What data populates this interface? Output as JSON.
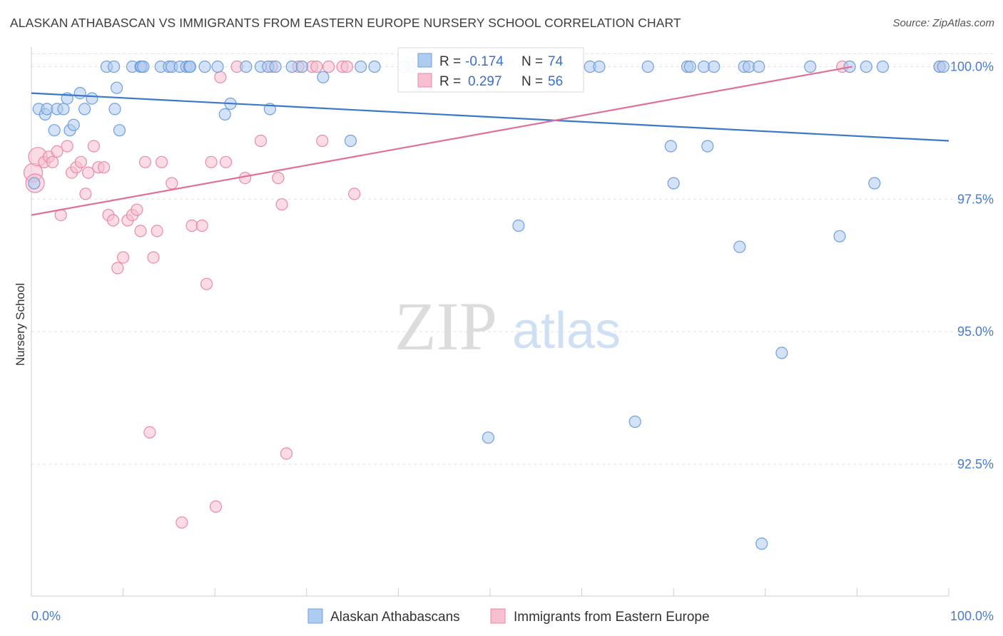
{
  "header": {
    "title": "ALASKAN ATHABASCAN VS IMMIGRANTS FROM EASTERN EUROPE NURSERY SCHOOL CORRELATION CHART",
    "source": "Source: ZipAtlas.com"
  },
  "watermark": {
    "zip": "ZIP",
    "atlas": "atlas"
  },
  "stats": [
    {
      "r_label": "R =",
      "r_value": "-0.174",
      "n_label": "N =",
      "n_value": "74"
    },
    {
      "r_label": "R =",
      "r_value": "0.297",
      "n_label": "N =",
      "n_value": "56"
    }
  ],
  "colors": {
    "blue_fill": "#aecbf0",
    "blue_stroke": "#6f9fdc",
    "blue_line": "#3a78c9",
    "pink_fill": "#f7bfd0",
    "pink_stroke": "#e98aa8",
    "pink_line": "#e0709a",
    "tick_text": "#4a7cc9",
    "stat_value": "#3a6fc4"
  },
  "chart_data": {
    "type": "scatter",
    "title": "ALASKAN ATHABASCAN VS IMMIGRANTS FROM EASTERN EUROPE NURSERY SCHOOL CORRELATION CHART",
    "xlabel": "",
    "ylabel": "Nursery School",
    "xlim": [
      0,
      100
    ],
    "ylim": [
      90.2,
      100.45
    ],
    "x_tick_labels": [
      "0.0%",
      "100.0%"
    ],
    "y_ticks": [
      92.5,
      95.0,
      97.5,
      100.0
    ],
    "y_tick_labels": [
      "92.5%",
      "95.0%",
      "97.5%",
      "100.0%"
    ],
    "grid": true,
    "legend_position": "bottom-center",
    "series": [
      {
        "name": "Alaskan Athabascans",
        "color": "#aecbf0",
        "trend": [
          [
            0,
            99.5
          ],
          [
            100,
            98.6
          ]
        ],
        "points": [
          [
            0.3,
            97.8
          ],
          [
            0.8,
            99.2
          ],
          [
            1.5,
            99.1
          ],
          [
            1.7,
            99.2
          ],
          [
            2.5,
            98.8
          ],
          [
            2.8,
            99.2
          ],
          [
            3.5,
            99.2
          ],
          [
            3.9,
            99.4
          ],
          [
            4.2,
            98.8
          ],
          [
            4.6,
            98.9
          ],
          [
            5.3,
            99.5
          ],
          [
            5.8,
            99.2
          ],
          [
            6.6,
            99.4
          ],
          [
            8.2,
            100.0
          ],
          [
            9.3,
            99.6
          ],
          [
            9.0,
            100.0
          ],
          [
            9.1,
            99.2
          ],
          [
            9.6,
            98.8
          ],
          [
            11.0,
            100.0
          ],
          [
            11.9,
            100.0
          ],
          [
            12.0,
            100.0
          ],
          [
            12.2,
            100.0
          ],
          [
            14.1,
            100.0
          ],
          [
            15.0,
            100.0
          ],
          [
            15.3,
            100.0
          ],
          [
            16.2,
            100.0
          ],
          [
            16.9,
            100.0
          ],
          [
            17.2,
            100.0
          ],
          [
            17.3,
            100.0
          ],
          [
            18.9,
            100.0
          ],
          [
            20.3,
            100.0
          ],
          [
            21.1,
            99.1
          ],
          [
            21.7,
            99.3
          ],
          [
            23.4,
            100.0
          ],
          [
            25.0,
            100.0
          ],
          [
            25.8,
            100.0
          ],
          [
            26.0,
            99.2
          ],
          [
            26.6,
            100.0
          ],
          [
            28.4,
            100.0
          ],
          [
            29.5,
            100.0
          ],
          [
            31.8,
            99.8
          ],
          [
            34.8,
            98.6
          ],
          [
            35.9,
            100.0
          ],
          [
            37.4,
            100.0
          ],
          [
            41.4,
            100.0
          ],
          [
            49.8,
            93.0
          ],
          [
            53.1,
            97.0
          ],
          [
            56.1,
            100.0
          ],
          [
            60.9,
            100.0
          ],
          [
            61.9,
            100.0
          ],
          [
            65.8,
            93.3
          ],
          [
            67.2,
            100.0
          ],
          [
            69.7,
            98.5
          ],
          [
            70.0,
            97.8
          ],
          [
            71.5,
            100.0
          ],
          [
            71.8,
            100.0
          ],
          [
            73.3,
            100.0
          ],
          [
            73.7,
            98.5
          ],
          [
            74.4,
            100.0
          ],
          [
            77.2,
            96.6
          ],
          [
            77.7,
            100.0
          ],
          [
            78.2,
            100.0
          ],
          [
            79.3,
            100.0
          ],
          [
            79.6,
            91.0
          ],
          [
            81.8,
            94.6
          ],
          [
            84.9,
            100.0
          ],
          [
            88.1,
            96.8
          ],
          [
            89.2,
            100.0
          ],
          [
            91.0,
            100.0
          ],
          [
            91.9,
            97.8
          ],
          [
            92.8,
            100.0
          ],
          [
            99.0,
            100.0
          ],
          [
            99.4,
            100.0
          ],
          [
            40.6,
            100.0
          ]
        ]
      },
      {
        "name": "Immigrants from Eastern Europe",
        "color": "#f7bfd0",
        "trend": [
          [
            0,
            97.2
          ],
          [
            89.5,
            100.0
          ]
        ],
        "points": [
          [
            0.2,
            98.0
          ],
          [
            0.7,
            98.3
          ],
          [
            1.4,
            98.2
          ],
          [
            1.9,
            98.3
          ],
          [
            2.3,
            98.2
          ],
          [
            2.8,
            98.4
          ],
          [
            3.2,
            97.2
          ],
          [
            3.9,
            98.5
          ],
          [
            4.4,
            98.0
          ],
          [
            4.9,
            98.1
          ],
          [
            5.4,
            98.2
          ],
          [
            5.9,
            97.6
          ],
          [
            6.2,
            98.0
          ],
          [
            6.8,
            98.5
          ],
          [
            7.3,
            98.1
          ],
          [
            7.9,
            98.1
          ],
          [
            8.4,
            97.2
          ],
          [
            8.9,
            97.1
          ],
          [
            9.4,
            96.2
          ],
          [
            10.0,
            96.4
          ],
          [
            10.5,
            97.1
          ],
          [
            11.0,
            97.2
          ],
          [
            11.5,
            97.3
          ],
          [
            11.9,
            96.9
          ],
          [
            12.4,
            98.2
          ],
          [
            12.9,
            93.1
          ],
          [
            13.3,
            96.4
          ],
          [
            13.7,
            96.9
          ],
          [
            14.2,
            98.2
          ],
          [
            15.3,
            97.8
          ],
          [
            16.4,
            91.4
          ],
          [
            17.5,
            97.0
          ],
          [
            18.6,
            97.0
          ],
          [
            19.1,
            95.9
          ],
          [
            19.6,
            98.2
          ],
          [
            20.1,
            91.7
          ],
          [
            20.6,
            99.8
          ],
          [
            21.2,
            98.2
          ],
          [
            22.4,
            100.0
          ],
          [
            23.3,
            97.9
          ],
          [
            25.0,
            98.6
          ],
          [
            26.2,
            100.0
          ],
          [
            26.9,
            97.9
          ],
          [
            27.3,
            97.4
          ],
          [
            27.8,
            92.7
          ],
          [
            29.1,
            100.0
          ],
          [
            30.6,
            100.0
          ],
          [
            31.1,
            100.0
          ],
          [
            31.7,
            98.6
          ],
          [
            32.4,
            100.0
          ],
          [
            33.9,
            100.0
          ],
          [
            34.4,
            100.0
          ],
          [
            35.2,
            97.6
          ],
          [
            88.4,
            100.0
          ],
          [
            99.0,
            100.0
          ],
          [
            0.4,
            97.8
          ]
        ]
      }
    ]
  },
  "legend": {
    "items": [
      "Alaskan Athabascans",
      "Immigrants from Eastern Europe"
    ]
  }
}
